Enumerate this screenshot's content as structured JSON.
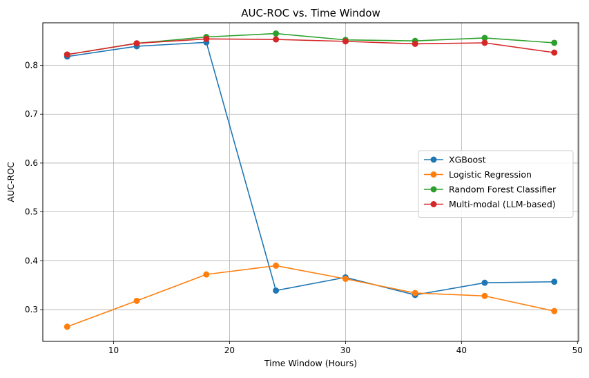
{
  "chart_data": {
    "type": "line",
    "title": "AUC-ROC vs. Time Window",
    "xlabel": "Time Window (Hours)",
    "ylabel": "AUC-ROC",
    "xlim": [
      3.9,
      50.1
    ],
    "ylim": [
      0.235,
      0.887
    ],
    "xticks": [
      10,
      20,
      30,
      40,
      50
    ],
    "yticks": [
      0.3,
      0.4,
      0.5,
      0.6,
      0.7,
      0.8
    ],
    "grid": true,
    "legend_position": "center-right",
    "x": [
      6,
      12,
      18,
      24,
      30,
      36,
      42,
      48
    ],
    "series": [
      {
        "name": "XGBoost",
        "color": "#1f77b4",
        "marker": "circle",
        "values": [
          0.818,
          0.839,
          0.847,
          0.339,
          0.366,
          0.33,
          0.355,
          0.357
        ]
      },
      {
        "name": "Logistic Regression",
        "color": "#ff7f0e",
        "marker": "circle",
        "values": [
          0.265,
          0.318,
          0.372,
          0.39,
          0.363,
          0.334,
          0.328,
          0.297
        ]
      },
      {
        "name": "Random Forest Classifier",
        "color": "#2ca02c",
        "marker": "circle",
        "values": [
          0.822,
          0.845,
          0.858,
          0.865,
          0.852,
          0.85,
          0.856,
          0.846
        ]
      },
      {
        "name": "Multi-modal (LLM-based)",
        "color": "#d62728",
        "marker": "circle",
        "values": [
          0.822,
          0.845,
          0.854,
          0.853,
          0.849,
          0.844,
          0.846,
          0.826
        ]
      }
    ]
  }
}
